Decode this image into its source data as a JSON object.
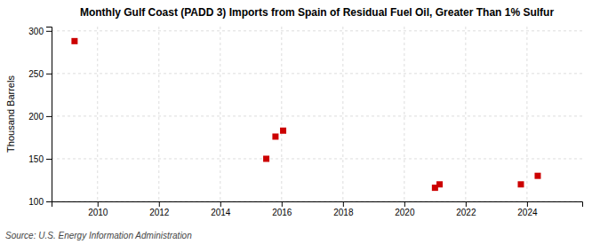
{
  "chart_data": {
    "type": "scatter",
    "title": "Monthly Gulf Coast (PADD 3) Imports from Spain of Residual Fuel Oil, Greater Than 1% Sulfur",
    "ylabel": "Thousand Barrels",
    "source": "Source: U.S. Energy Information Administration",
    "x": [
      2009.25,
      2015.5,
      2015.8,
      2016.05,
      2021.0,
      2021.15,
      2023.8,
      2024.35
    ],
    "values": [
      288,
      150,
      176,
      183,
      116,
      120,
      120,
      130
    ],
    "color": "#cc0000",
    "marker": "square",
    "xlim": [
      2008.5,
      2025.8
    ],
    "ylim": [
      100,
      305
    ],
    "xticks": [
      2010,
      2012,
      2014,
      2016,
      2018,
      2020,
      2022,
      2024
    ],
    "yticks": [
      100,
      150,
      200,
      250,
      300
    ],
    "grid": true
  }
}
